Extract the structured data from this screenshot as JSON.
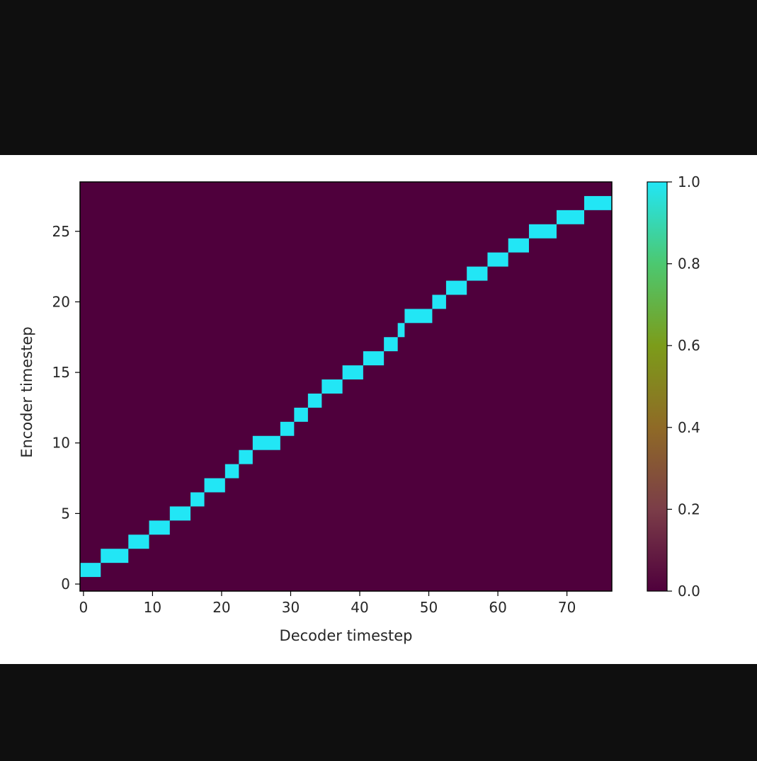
{
  "chart_data": {
    "type": "heatmap",
    "title": "",
    "xlabel": "Decoder timestep",
    "ylabel": "Encoder timestep",
    "xlim": [
      -0.5,
      76.5
    ],
    "ylim": [
      -0.5,
      28.5
    ],
    "xticks": [
      0,
      10,
      20,
      30,
      40,
      50,
      60,
      70
    ],
    "yticks": [
      0,
      5,
      10,
      15,
      20,
      25
    ],
    "colorbar": {
      "range": [
        0.0,
        1.0
      ],
      "ticks": [
        "0.0",
        "0.2",
        "0.4",
        "0.6",
        "0.8",
        "1.0"
      ],
      "colors": [
        "#4f003c",
        "#7b3d48",
        "#8f6a26",
        "#7c9c1a",
        "#4cc870",
        "#22e6f5"
      ]
    },
    "background_value": 0.0,
    "cell_value": 1.0,
    "background_color": "#4f003c",
    "cell_color": "#22e6f5",
    "cells": [
      {
        "y": 1,
        "x0": 0,
        "x1": 2
      },
      {
        "y": 2,
        "x0": 3,
        "x1": 6
      },
      {
        "y": 3,
        "x0": 7,
        "x1": 9
      },
      {
        "y": 4,
        "x0": 10,
        "x1": 12
      },
      {
        "y": 5,
        "x0": 13,
        "x1": 15
      },
      {
        "y": 6,
        "x0": 16,
        "x1": 17
      },
      {
        "y": 7,
        "x0": 18,
        "x1": 20
      },
      {
        "y": 8,
        "x0": 21,
        "x1": 22
      },
      {
        "y": 9,
        "x0": 23,
        "x1": 24
      },
      {
        "y": 10,
        "x0": 25,
        "x1": 28
      },
      {
        "y": 11,
        "x0": 29,
        "x1": 30
      },
      {
        "y": 12,
        "x0": 31,
        "x1": 32
      },
      {
        "y": 13,
        "x0": 33,
        "x1": 34
      },
      {
        "y": 14,
        "x0": 35,
        "x1": 37
      },
      {
        "y": 15,
        "x0": 38,
        "x1": 40
      },
      {
        "y": 16,
        "x0": 41,
        "x1": 43
      },
      {
        "y": 17,
        "x0": 44,
        "x1": 45
      },
      {
        "y": 18,
        "x0": 46,
        "x1": 46
      },
      {
        "y": 19,
        "x0": 47,
        "x1": 50
      },
      {
        "y": 20,
        "x0": 51,
        "x1": 52
      },
      {
        "y": 21,
        "x0": 53,
        "x1": 55
      },
      {
        "y": 22,
        "x0": 56,
        "x1": 58
      },
      {
        "y": 23,
        "x0": 59,
        "x1": 61
      },
      {
        "y": 24,
        "x0": 62,
        "x1": 64
      },
      {
        "y": 25,
        "x0": 65,
        "x1": 68
      },
      {
        "y": 26,
        "x0": 69,
        "x1": 72
      },
      {
        "y": 27,
        "x0": 73,
        "x1": 76
      }
    ]
  }
}
